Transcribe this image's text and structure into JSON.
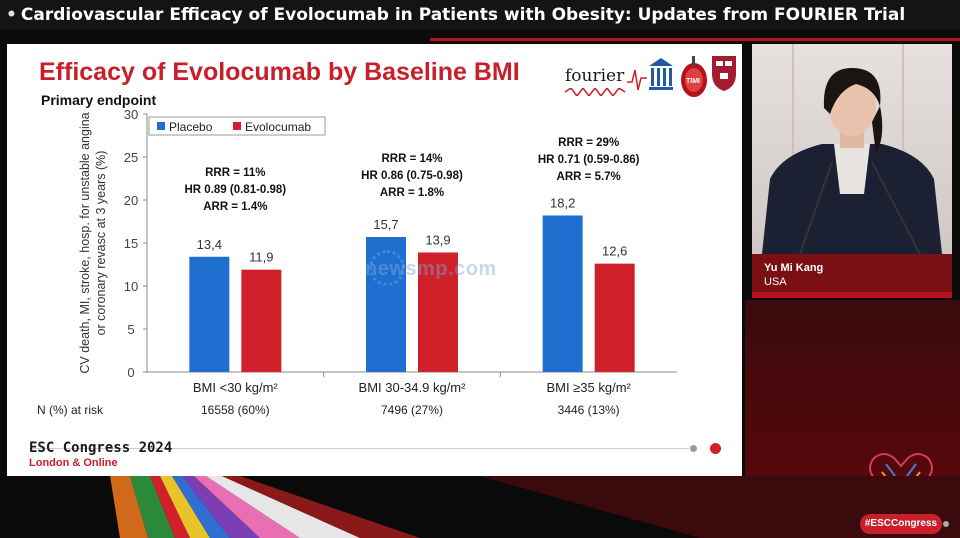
{
  "stream": {
    "banner_title": "Cardiovascular Efficacy of Evolocumab in Patients with Obesity: Updates from FOURIER Trial",
    "hashtag": "#ESCCongress"
  },
  "slide": {
    "title": "Efficacy of Evolocumab by Baseline BMI",
    "subtitle": "Primary endpoint",
    "logo_text": "fourier",
    "footer_conference": "ESC Congress 2024",
    "footer_location": "London & Online",
    "watermark": "newsmp.com",
    "colors": {
      "placebo": "#1f6fd1",
      "evolocumab": "#d0202a",
      "title": "#c8202a"
    }
  },
  "speaker": {
    "name": "Yu Mi Kang",
    "country": "USA"
  },
  "chart_data": {
    "type": "bar",
    "ylabel_line1": "CV death, MI, stroke, hosp. for unstable angina",
    "ylabel_line2": "or coronary revasc at 3 years (%)",
    "ylim": [
      0,
      30
    ],
    "yticks": [
      "0",
      "5",
      "10",
      "15",
      "20",
      "25",
      "30"
    ],
    "legend": [
      "Placebo",
      "Evolocumab"
    ],
    "legend_position": "top-left",
    "categories": [
      "BMI <30 kg/m²",
      "BMI 30-34.9 kg/m²",
      "BMI ≥35 kg/m²"
    ],
    "series": [
      {
        "name": "Placebo",
        "values": [
          13.4,
          15.7,
          18.2
        ],
        "labels": [
          "13,4",
          "15,7",
          "18,2"
        ]
      },
      {
        "name": "Evolocumab",
        "values": [
          11.9,
          13.9,
          12.6
        ],
        "labels": [
          "11,9",
          "13,9",
          "12,6"
        ]
      }
    ],
    "annotations": [
      {
        "rrr": "RRR = 11%",
        "hr": "HR 0.89 (0.81-0.98)",
        "arr": "ARR = 1.4%"
      },
      {
        "rrr": "RRR = 14%",
        "hr": "HR 0.86 (0.75-0.98)",
        "arr": "ARR = 1.8%"
      },
      {
        "rrr": "RRR = 29%",
        "hr": "HR 0.71 (0.59-0.86)",
        "arr": "ARR = 5.7%"
      }
    ],
    "at_risk_label": "N (%) at risk",
    "at_risk": [
      "16558 (60%)",
      "7496 (27%)",
      "3446 (13%)"
    ]
  }
}
